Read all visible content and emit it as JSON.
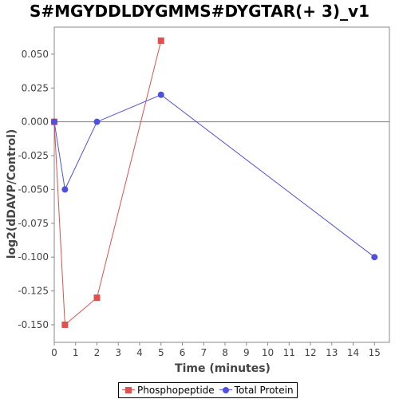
{
  "chart_data": {
    "type": "line",
    "title": "S#MGYDDLDYGMMS#DYGTAR(+ 3)_v1",
    "xlabel": "Time (minutes)",
    "ylabel": "log2(dDAVP/Control)",
    "xlim": [
      0,
      15.7
    ],
    "ylim": [
      -0.163,
      0.07
    ],
    "x_ticks": [
      0,
      1,
      2,
      3,
      4,
      5,
      6,
      7,
      8,
      9,
      10,
      11,
      12,
      13,
      14,
      15
    ],
    "y_ticks": [
      0.05,
      0.025,
      0.0,
      -0.025,
      -0.05,
      -0.075,
      -0.1,
      -0.125,
      -0.15
    ],
    "y_tick_labels": [
      "0.050",
      "0.025",
      "0.000",
      "-0.025",
      "-0.050",
      "-0.075",
      "-0.100",
      "-0.125",
      "-0.150"
    ],
    "zero_line": true,
    "legend_position": "bottom",
    "series": [
      {
        "name": "Phosphopeptide",
        "color": "#e05050",
        "marker": "square",
        "x": [
          0,
          0.5,
          2,
          5
        ],
        "y": [
          0.0,
          -0.15,
          -0.13,
          0.06
        ]
      },
      {
        "name": "Total Protein",
        "color": "#5050e0",
        "marker": "circle",
        "x": [
          0,
          0.5,
          2,
          5,
          15
        ],
        "y": [
          0.0,
          -0.05,
          0.0,
          0.02,
          -0.1
        ]
      }
    ]
  }
}
